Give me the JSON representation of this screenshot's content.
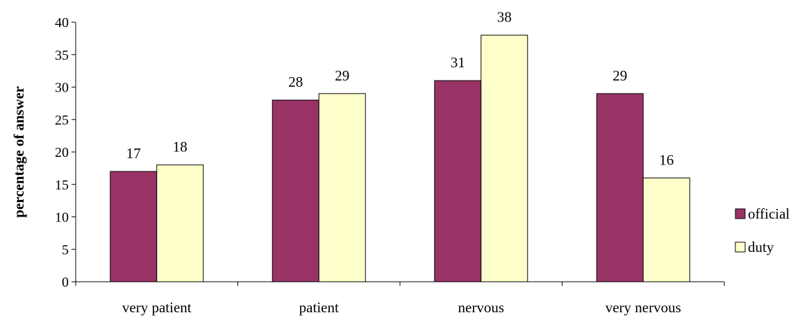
{
  "chart_data": {
    "type": "bar",
    "title": "",
    "xlabel": "",
    "ylabel": "percentage of answer",
    "categories": [
      "very patient",
      "patient",
      "nervous",
      "very nervous"
    ],
    "series": [
      {
        "name": "official",
        "values": [
          17,
          28,
          31,
          29
        ],
        "color": "#993366"
      },
      {
        "name": "duty",
        "values": [
          18,
          29,
          38,
          16
        ],
        "color": "#FFFFCC"
      }
    ],
    "ylim": [
      0,
      40
    ],
    "yticks": [
      0,
      5,
      10,
      15,
      20,
      25,
      30,
      35,
      40
    ],
    "grid": false,
    "legend_position": "right",
    "data_labels": true
  }
}
